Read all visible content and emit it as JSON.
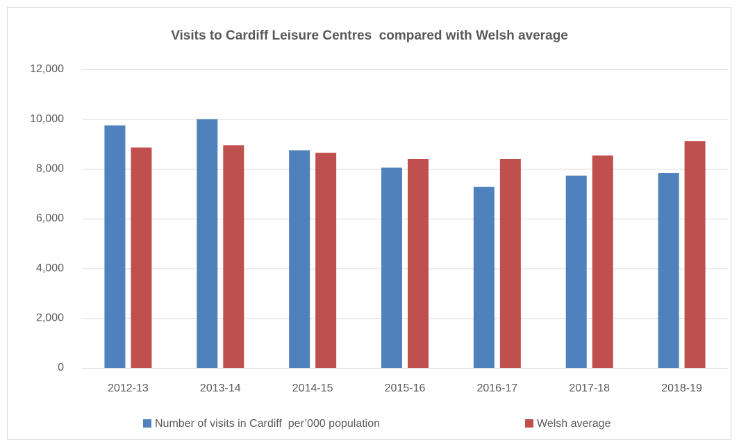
{
  "chart_data": {
    "type": "bar",
    "title": "Visits to Cardiff Leisure Centres  compared with Welsh average",
    "categories": [
      "2012-13",
      "2013-14",
      "2014-15",
      "2015-16",
      "2016-17",
      "2017-18",
      "2018-19"
    ],
    "series": [
      {
        "name": "Number of visits in Cardiff  per’000 population",
        "color": "#4f81bd",
        "values": [
          9750,
          10000,
          8750,
          8050,
          7280,
          7730,
          7840
        ]
      },
      {
        "name": "Welsh average",
        "color": "#c0504d",
        "values": [
          8860,
          8950,
          8650,
          8400,
          8400,
          8540,
          9120
        ]
      }
    ],
    "ylim": [
      0,
      12000
    ],
    "yticks": [
      0,
      {
        "value": 2000,
        "label": "2,000"
      },
      {
        "value": 4000,
        "label": "4,000"
      },
      {
        "value": 6000,
        "label": "6,000"
      },
      {
        "value": 8000,
        "label": "8,000"
      },
      {
        "value": 10000,
        "label": "10,000"
      },
      {
        "value": 12000,
        "label": "12,000"
      }
    ],
    "grid": true,
    "legend": "bottom"
  }
}
